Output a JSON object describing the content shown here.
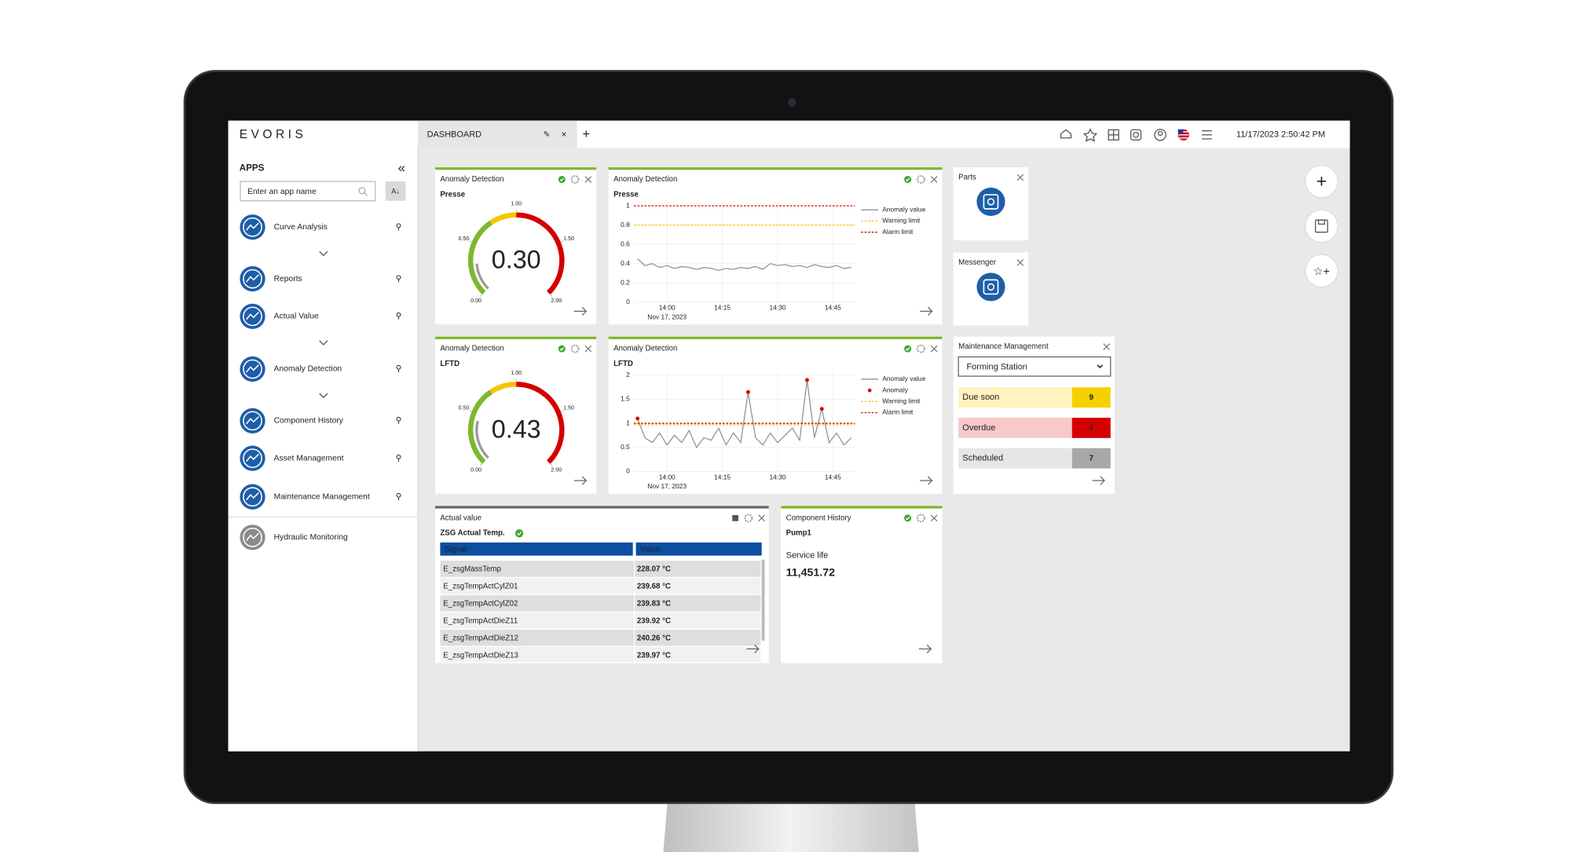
{
  "header": {
    "logo": "EVORIS",
    "tab": "DASHBOARD",
    "datetime": "11/17/2023 2:50:42 PM"
  },
  "sidebar": {
    "title": "APPS",
    "search_placeholder": "Enter an app name",
    "apps": [
      "Curve Analysis",
      "Reports",
      "Actual Value",
      "Anomaly Detection",
      "Component History",
      "Asset Management",
      "Maintenance Management",
      "Hydraulic Monitoring"
    ]
  },
  "chart_data": [
    {
      "type": "gauge",
      "title": "Anomaly Detection",
      "subtitle": "Presse",
      "value": 0.3,
      "value_label": "0.30",
      "ylim": [
        0,
        2
      ],
      "yticks": [
        {
          "value": 0,
          "label": "0.00"
        },
        {
          "value": 0.5,
          "label": "0.50"
        },
        {
          "value": 1,
          "label": "1.00"
        },
        {
          "value": 1.5,
          "label": "1.50"
        },
        {
          "value": 2,
          "label": "2.00"
        }
      ],
      "bands": [
        {
          "from": 0,
          "to": 0.75,
          "color": "#7cb82f"
        },
        {
          "from": 0.75,
          "to": 1,
          "color": "#f5c400"
        },
        {
          "from": 1,
          "to": 2,
          "color": "#d40000"
        }
      ]
    },
    {
      "type": "line",
      "title": "Anomaly Detection",
      "subtitle": "Presse",
      "x": [
        "13:52",
        "13:54",
        "13:56",
        "13:58",
        "14:00",
        "14:02",
        "14:04",
        "14:06",
        "14:08",
        "14:10",
        "14:12",
        "14:14",
        "14:16",
        "14:18",
        "14:20",
        "14:22",
        "14:24",
        "14:26",
        "14:28",
        "14:30",
        "14:32",
        "14:34",
        "14:36",
        "14:38",
        "14:40",
        "14:42",
        "14:44",
        "14:46",
        "14:48",
        "14:50"
      ],
      "xlim": [
        "13:51",
        "14:51"
      ],
      "xticks": [
        "14:00",
        "14:15",
        "14:30",
        "14:45"
      ],
      "x_sublabel": "Nov 17, 2023",
      "ylim": [
        0,
        1
      ],
      "yticks": [
        0,
        0.2,
        0.4,
        0.6,
        0.8,
        1
      ],
      "grid": true,
      "series": [
        {
          "name": "Anomaly value",
          "color": "#8a8a8a",
          "values": [
            0.45,
            0.38,
            0.4,
            0.36,
            0.38,
            0.35,
            0.37,
            0.36,
            0.34,
            0.36,
            0.35,
            0.33,
            0.35,
            0.34,
            0.36,
            0.35,
            0.37,
            0.34,
            0.4,
            0.38,
            0.39,
            0.37,
            0.38,
            0.36,
            0.39,
            0.37,
            0.36,
            0.38,
            0.35,
            0.36
          ]
        },
        {
          "name": "Warning limit",
          "color": "#f5c400",
          "value": 0.8
        },
        {
          "name": "Alarm limit",
          "color": "#d40000",
          "value": 1
        }
      ]
    },
    {
      "type": "gauge",
      "title": "Anomaly Detection",
      "subtitle": "LFTD",
      "value": 0.43,
      "value_label": "0.43",
      "ylim": [
        0,
        2
      ],
      "yticks": [
        {
          "value": 0,
          "label": "0.00"
        },
        {
          "value": 0.5,
          "label": "0.50"
        },
        {
          "value": 1,
          "label": "1.00"
        },
        {
          "value": 1.5,
          "label": "1.50"
        },
        {
          "value": 2,
          "label": "2.00"
        }
      ],
      "bands": [
        {
          "from": 0,
          "to": 0.75,
          "color": "#7cb82f"
        },
        {
          "from": 0.75,
          "to": 1,
          "color": "#f5c400"
        },
        {
          "from": 1,
          "to": 2,
          "color": "#d40000"
        }
      ]
    },
    {
      "type": "line",
      "title": "Anomaly Detection",
      "subtitle": "LFTD",
      "x": [
        "13:52",
        "13:54",
        "13:56",
        "13:58",
        "14:00",
        "14:02",
        "14:04",
        "14:06",
        "14:08",
        "14:10",
        "14:12",
        "14:14",
        "14:16",
        "14:18",
        "14:20",
        "14:22",
        "14:24",
        "14:26",
        "14:28",
        "14:30",
        "14:32",
        "14:34",
        "14:36",
        "14:38",
        "14:40",
        "14:42",
        "14:44",
        "14:46",
        "14:48",
        "14:50"
      ],
      "xlim": [
        "13:51",
        "14:51"
      ],
      "xticks": [
        "14:00",
        "14:15",
        "14:30",
        "14:45"
      ],
      "x_sublabel": "Nov 17, 2023",
      "ylim": [
        0,
        2
      ],
      "yticks": [
        0,
        0.5,
        1,
        1.5,
        2
      ],
      "grid": true,
      "series": [
        {
          "name": "Anomaly value",
          "color": "#8a8a8a",
          "values": [
            1.1,
            0.7,
            0.6,
            0.8,
            0.55,
            0.75,
            0.6,
            0.85,
            0.5,
            0.7,
            0.65,
            0.9,
            0.55,
            0.8,
            0.6,
            1.65,
            0.7,
            0.55,
            0.8,
            0.6,
            0.75,
            0.9,
            0.65,
            1.9,
            0.7,
            1.3,
            0.6,
            0.8,
            0.55,
            0.7
          ]
        },
        {
          "name": "Anomaly",
          "color": "#d40000",
          "style": "markers",
          "values": [
            1.1,
            null,
            null,
            null,
            null,
            null,
            null,
            null,
            null,
            null,
            null,
            null,
            null,
            null,
            null,
            1.65,
            null,
            null,
            null,
            null,
            null,
            null,
            null,
            1.9,
            null,
            1.3,
            null,
            null,
            null,
            null
          ]
        },
        {
          "name": "Warning limit",
          "color": "#f5c400",
          "value": 0.97
        },
        {
          "name": "Alarm limit",
          "color": "#d40000",
          "value": 1
        }
      ]
    }
  ],
  "parts": {
    "title": "Parts"
  },
  "messenger": {
    "title": "Messenger"
  },
  "maintenance": {
    "title": "Maintenance Management",
    "selection": "Forming Station",
    "rows": [
      {
        "label": "Due soon",
        "count": 9
      },
      {
        "label": "Overdue",
        "count": 4
      },
      {
        "label": "Scheduled",
        "count": 7
      }
    ]
  },
  "actual_value": {
    "title": "Actual value",
    "subtitle": "ZSG Actual Temp.",
    "columns": [
      "Signal",
      "Value"
    ],
    "rows": [
      [
        "E_zsgMassTemp",
        "228.07 °C"
      ],
      [
        "E_zsgTempActCylZ01",
        "239.68 °C"
      ],
      [
        "E_zsgTempActCylZ02",
        "239.83 °C"
      ],
      [
        "E_zsgTempActDieZ11",
        "239.92 °C"
      ],
      [
        "E_zsgTempActDieZ12",
        "240.26 °C"
      ],
      [
        "E_zsgTempActDieZ13",
        "239.97 °C"
      ]
    ]
  },
  "component_history": {
    "title": "Component History",
    "subtitle": "Pump1",
    "label": "Service life",
    "value": "11,451.72"
  }
}
